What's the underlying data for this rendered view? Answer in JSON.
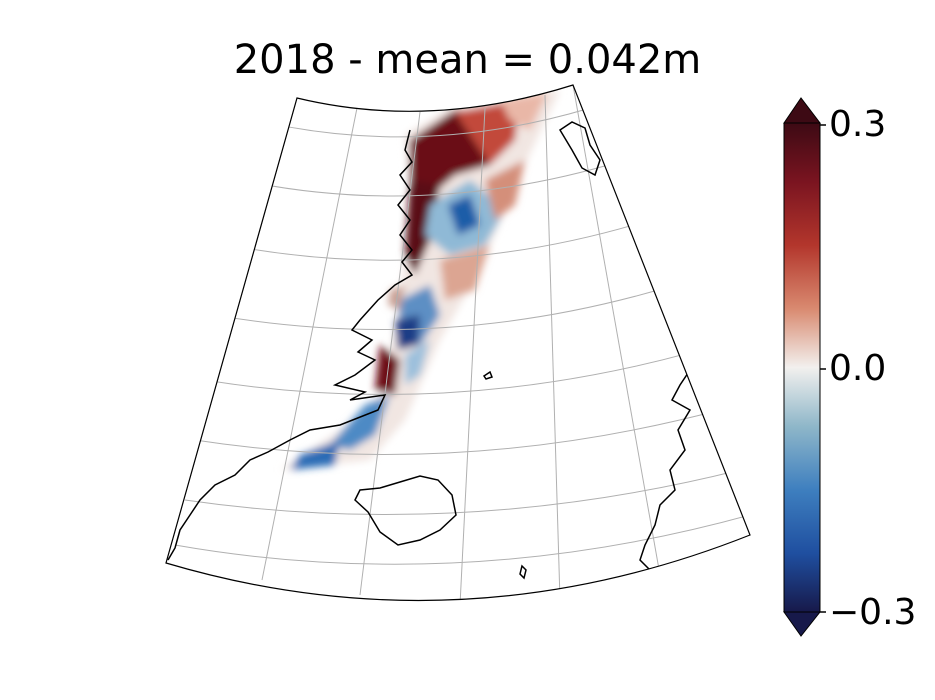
{
  "title": "2018 - mean = 0.042m",
  "colorbar": {
    "ticks": [
      "0.3",
      "0.0",
      "−0.3"
    ],
    "min": -0.3,
    "max": 0.3,
    "colors": {
      "max": "#3d0a14",
      "high": "#a51c2a",
      "mid_high": "#d98a70",
      "zero": "#f2f0ee",
      "mid_low": "#6aa3c8",
      "low": "#1f5fae",
      "min": "#17194a"
    },
    "extend": "both"
  },
  "map": {
    "projection": "conic",
    "gridlines": true,
    "coastline_color": "#000000",
    "grid_color": "#b0b0b0",
    "land_features": [
      "greenland-east-coast",
      "iceland",
      "svalbard-norway-coast",
      "jan-mayen"
    ]
  }
}
